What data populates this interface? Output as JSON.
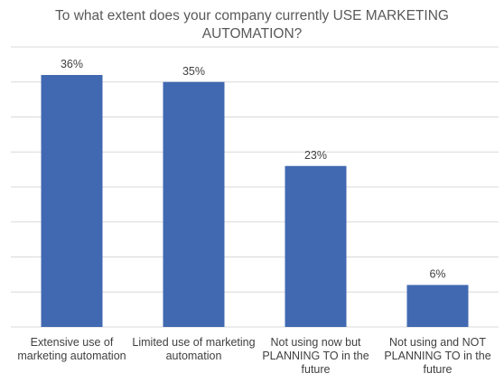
{
  "chart_data": {
    "type": "bar",
    "title": "To what extent does your company currently USE MARKETING AUTOMATION?",
    "categories": [
      "Extensive use of marketing automation",
      "Limited use of marketing automation",
      "Not using now but PLANNING TO in the future",
      "Not using and NOT PLANNING TO in the future"
    ],
    "values": [
      36,
      35,
      23,
      6
    ],
    "data_labels": [
      "36%",
      "35%",
      "23%",
      "6%"
    ],
    "xlabel": "",
    "ylabel": "",
    "ylim": [
      0,
      40
    ],
    "grid": true,
    "legend": "none",
    "bar_color": "#4169B1",
    "grid_color": "#D9D9D9",
    "label_color": "#404040",
    "title_color": "#595959"
  }
}
